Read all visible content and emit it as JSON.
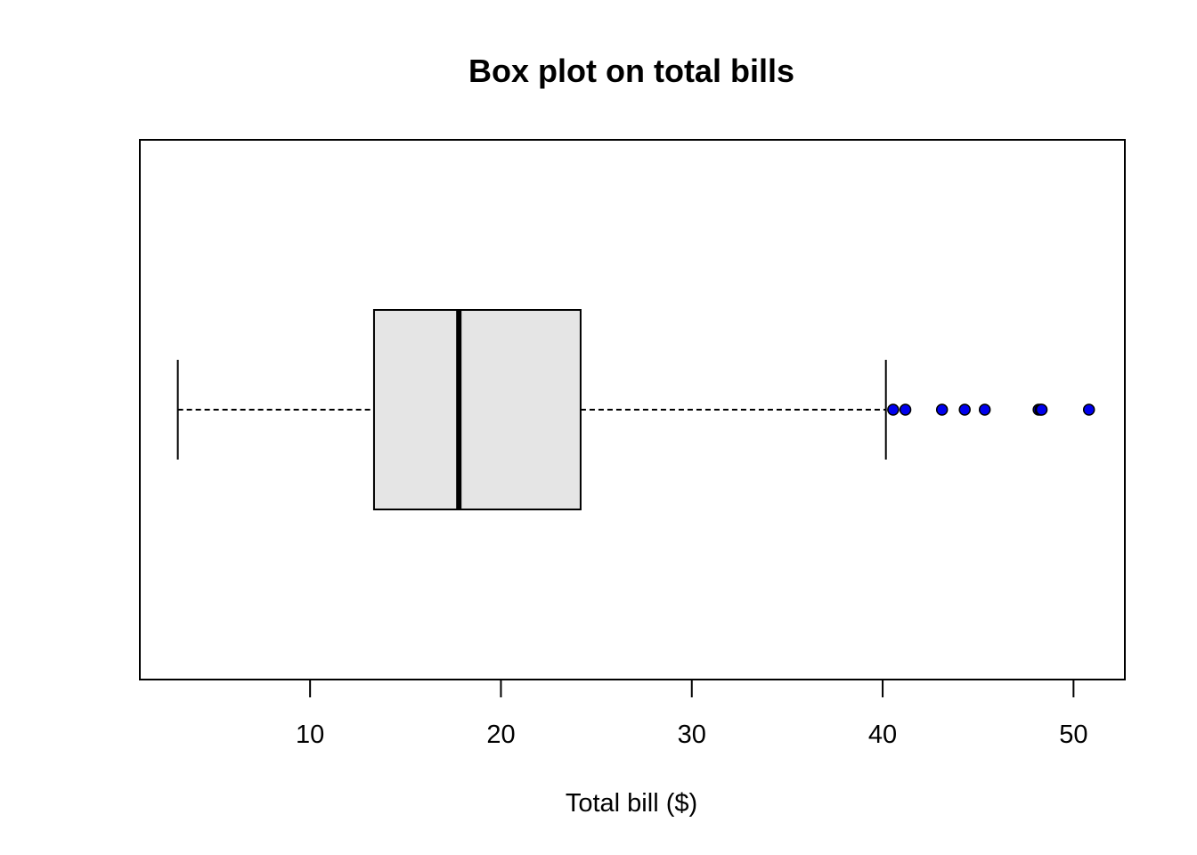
{
  "chart_data": {
    "type": "boxplot",
    "orientation": "horizontal",
    "title": "Box plot on total bills",
    "xlabel": "Total bill ($)",
    "ylabel": "",
    "xlim": [
      1.08,
      52.69
    ],
    "xticks": [
      10,
      20,
      30,
      40,
      50
    ],
    "xtick_labels": [
      "10",
      "20",
      "30",
      "40",
      "50"
    ],
    "grid": false,
    "box": {
      "whisker_low": 3.07,
      "q1": 13.35,
      "median": 17.795,
      "q3": 24.175,
      "whisker_high": 40.17
    },
    "outliers": [
      40.55,
      41.19,
      43.11,
      44.3,
      45.35,
      48.17,
      48.27,
      48.33,
      50.81
    ],
    "colors": {
      "box_fill": "#e5e5e5",
      "outlier_fill": "#0000ee",
      "line": "#000000"
    }
  }
}
